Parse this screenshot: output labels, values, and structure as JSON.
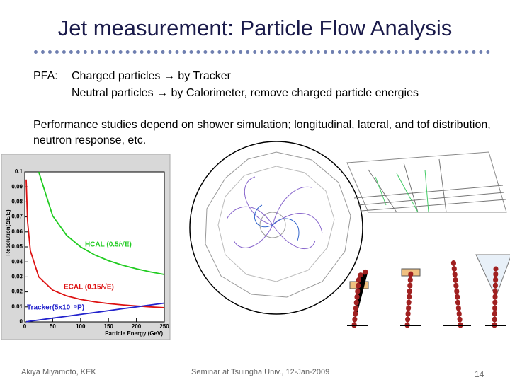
{
  "header": {
    "title": "Jet measurement: Particle Flow Analysis"
  },
  "body": {
    "pfa_label": "PFA:",
    "pfa_lines": [
      "Charged particles → by Tracker",
      "Neutral particles → by Calorimeter, remove charged particle energies"
    ],
    "performance": "Performance studies depend on shower simulation; longitudinal, lateral, and tof distribution, neutron response, etc."
  },
  "chart_data": {
    "type": "line",
    "x_label": "Particle Energy (GeV)",
    "y_label": "Resolution(ΔE/E)",
    "x": [
      2.5,
      5,
      10,
      25,
      50,
      75,
      100,
      125,
      150,
      175,
      200,
      225,
      250
    ],
    "series": [
      {
        "name": "HCAL (0.5/√E)",
        "color": "#22cc22",
        "values": [
          null,
          null,
          null,
          0.1,
          0.0707,
          0.0577,
          0.05,
          0.0447,
          0.0408,
          0.0378,
          0.0354,
          0.0333,
          0.0316
        ]
      },
      {
        "name": "ECAL (0.15/√E)",
        "color": "#dd1111",
        "values": [
          0.0949,
          0.0671,
          0.0474,
          0.03,
          0.0212,
          0.0173,
          0.015,
          0.0134,
          0.0122,
          0.0113,
          0.0106,
          0.01,
          0.0095
        ]
      },
      {
        "name": "Tracker(5x10⁻⁵P)",
        "color": "#2222cc",
        "values": [
          0.000125,
          0.00025,
          0.0005,
          0.00125,
          0.0025,
          0.00375,
          0.005,
          0.00625,
          0.0075,
          0.00875,
          0.01,
          0.01125,
          0.0125
        ]
      }
    ],
    "xlim": [
      0,
      250
    ],
    "ylim": [
      0,
      0.1
    ],
    "xticks": [
      0,
      50,
      100,
      150,
      200,
      250
    ],
    "yticks": [
      0,
      0.01,
      0.02,
      0.03,
      0.04,
      0.05,
      0.06,
      0.07,
      0.08,
      0.09,
      0.1
    ]
  },
  "footer": {
    "author": "Akiya Miyamoto, KEK",
    "event": "Seminar at Tsuingha Univ., 12-Jan-2009",
    "page": "14"
  }
}
